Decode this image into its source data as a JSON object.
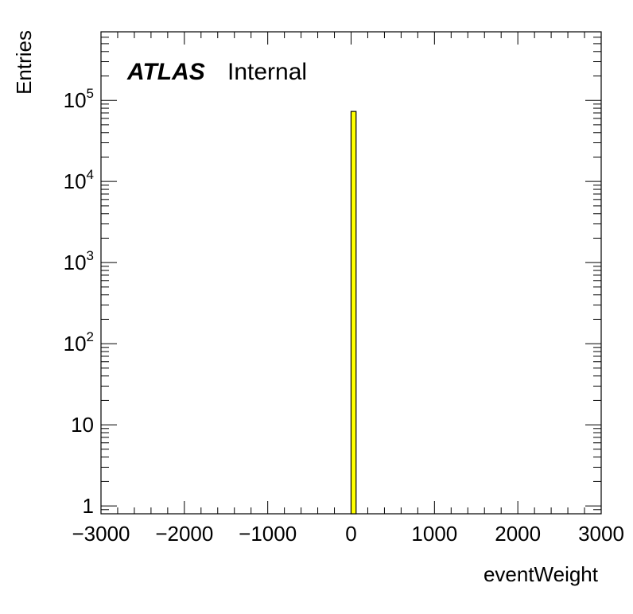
{
  "chart_data": {
    "type": "bar",
    "subtype": "histogram",
    "title": "",
    "xlabel": "eventWeight",
    "ylabel": "Entries",
    "xlim": [
      -3000,
      3000
    ],
    "ylim": [
      0.8,
      700000
    ],
    "yscale": "log",
    "grid": false,
    "legend": "none",
    "x_ticks": [
      "−3000",
      "−2000",
      "−1000",
      "0",
      "1000",
      "2000",
      "3000"
    ],
    "y_ticks": [
      {
        "value": 1,
        "base": "1",
        "exp": ""
      },
      {
        "value": 10,
        "base": "10",
        "exp": ""
      },
      {
        "value": 100,
        "base": "10",
        "exp": "2"
      },
      {
        "value": 1000,
        "base": "10",
        "exp": "3"
      },
      {
        "value": 10000,
        "base": "10",
        "exp": "4"
      },
      {
        "value": 100000,
        "base": "10",
        "exp": "5"
      }
    ],
    "bins": [
      {
        "x_low": -0.5,
        "x_high": 60,
        "value": 73000
      }
    ],
    "colors": {
      "bar_fill": "#ffff00",
      "bar_edge": "#000000"
    },
    "annotation": {
      "atlas": "ATLAS",
      "status": "Internal"
    }
  }
}
